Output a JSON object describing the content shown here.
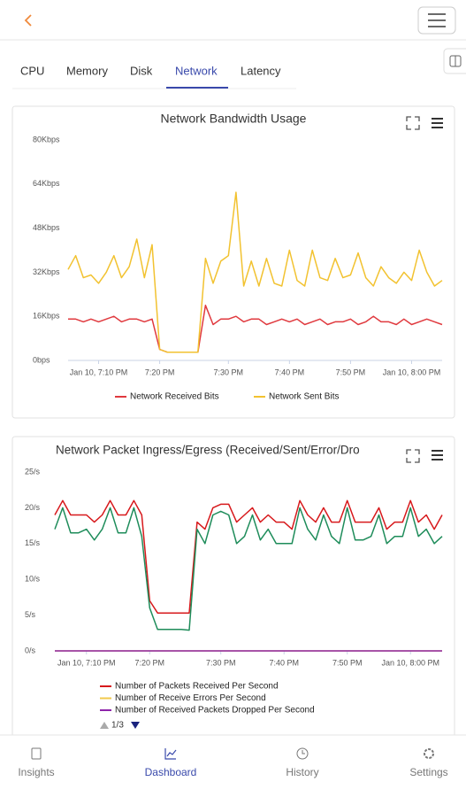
{
  "tabs": [
    "CPU",
    "Memory",
    "Disk",
    "Network",
    "Latency"
  ],
  "legend_page": "1/3",
  "nav": [
    "Insights",
    "Dashboard",
    "History",
    "Settings"
  ],
  "chart_data": [
    {
      "type": "line",
      "title": "Network Bandwidth Usage",
      "categories": [
        null,
        null,
        null,
        null,
        "Jan 10, 7:10 PM",
        null,
        null,
        null,
        null,
        null,
        null,
        null,
        "7:20 PM",
        null,
        null,
        null,
        null,
        null,
        null,
        null,
        null,
        "7:30 PM",
        null,
        null,
        null,
        null,
        null,
        null,
        null,
        "7:40 PM",
        null,
        null,
        null,
        null,
        null,
        null,
        null,
        "7:50 PM",
        null,
        null,
        null,
        null,
        null,
        null,
        null,
        "Jan 10, 8:00 PM",
        null,
        null,
        null,
        null
      ],
      "series": [
        {
          "name": "Network Received Bits",
          "color": "#e0393e",
          "values": [
            15,
            15,
            14,
            15,
            14,
            15,
            16,
            14,
            15,
            15,
            14,
            15,
            4,
            3,
            3,
            3,
            3,
            3,
            20,
            13,
            15,
            15,
            16,
            14,
            15,
            15,
            13,
            14,
            15,
            14,
            15,
            13,
            14,
            15,
            13,
            14,
            14,
            15,
            13,
            14,
            16,
            14,
            14,
            13,
            15,
            13,
            14,
            15,
            14,
            13
          ]
        },
        {
          "name": "Network Sent Bits",
          "color": "#f2c230",
          "values": [
            33,
            38,
            30,
            31,
            28,
            32,
            38,
            30,
            34,
            44,
            30,
            42,
            4,
            3,
            3,
            3,
            3,
            3,
            37,
            28,
            36,
            38,
            61,
            27,
            36,
            27,
            37,
            28,
            27,
            40,
            29,
            27,
            40,
            30,
            29,
            37,
            30,
            31,
            39,
            30,
            27,
            34,
            30,
            28,
            32,
            29,
            40,
            32,
            27,
            29
          ]
        }
      ],
      "ylim": [
        0,
        80
      ],
      "yticks": [
        {
          "value": 0,
          "label": "0bps"
        },
        {
          "value": 16,
          "label": "16Kbps"
        },
        {
          "value": 32,
          "label": "32Kbps"
        },
        {
          "value": 48,
          "label": "48Kbps"
        },
        {
          "value": 64,
          "label": "64Kbps"
        },
        {
          "value": 80,
          "label": "80Kbps"
        }
      ],
      "grid": false,
      "legend": "bottom"
    },
    {
      "type": "line",
      "title": "Network Packet Ingress/Egress (Received/Sent/Error/Dro",
      "categories": [
        null,
        null,
        null,
        null,
        "Jan 10, 7:10 PM",
        null,
        null,
        null,
        null,
        null,
        null,
        null,
        "7:20 PM",
        null,
        null,
        null,
        null,
        null,
        null,
        null,
        null,
        "7:30 PM",
        null,
        null,
        null,
        null,
        null,
        null,
        null,
        "7:40 PM",
        null,
        null,
        null,
        null,
        null,
        null,
        null,
        "7:50 PM",
        null,
        null,
        null,
        null,
        null,
        null,
        null,
        "Jan 10, 8:00 PM",
        null,
        null,
        null,
        null
      ],
      "series": [
        {
          "name": "Number of Packets Received Per Second",
          "color": "#d7191c",
          "values": [
            19,
            21,
            19,
            19,
            19,
            18,
            19,
            21,
            19,
            19,
            21,
            19,
            7,
            5.3,
            5.3,
            5.3,
            5.3,
            5.3,
            18,
            17,
            20,
            20.5,
            20.5,
            18,
            19,
            20,
            18,
            19,
            18,
            18,
            17,
            21,
            19,
            18,
            20,
            18,
            18,
            21,
            18,
            18,
            18,
            20,
            17,
            18,
            18,
            21,
            18,
            19,
            17,
            19
          ]
        },
        {
          "name": "Number of Receive Errors Per Second",
          "color": "#f2c94c",
          "values": [
            0,
            0,
            0,
            0,
            0,
            0,
            0,
            0,
            0,
            0,
            0,
            0,
            0,
            0,
            0,
            0,
            0,
            0,
            0,
            0,
            0,
            0,
            0,
            0,
            0,
            0,
            0,
            0,
            0,
            0,
            0,
            0,
            0,
            0,
            0,
            0,
            0,
            0,
            0,
            0,
            0,
            0,
            0,
            0,
            0,
            0,
            0,
            0,
            0,
            0
          ]
        },
        {
          "name": "Number of Received Packets Dropped Per Second",
          "color": "#8e24aa",
          "values": [
            0,
            0,
            0,
            0,
            0,
            0,
            0,
            0,
            0,
            0,
            0,
            0,
            0,
            0,
            0,
            0,
            0,
            0,
            0,
            0,
            0,
            0,
            0,
            0,
            0,
            0,
            0,
            0,
            0,
            0,
            0,
            0,
            0,
            0,
            0,
            0,
            0,
            0,
            0,
            0,
            0,
            0,
            0,
            0,
            0,
            0,
            0,
            0,
            0,
            0
          ]
        },
        {
          "color": "#1e8c5a",
          "values": [
            17,
            20,
            16.5,
            16.5,
            17,
            15.5,
            17,
            20,
            16.5,
            16.5,
            20,
            16,
            6,
            3,
            3,
            3,
            3,
            2.9,
            17,
            15,
            19,
            19.5,
            19,
            15,
            16,
            19,
            15.5,
            17,
            15,
            15,
            15,
            20,
            17,
            15.5,
            19,
            16,
            15,
            20,
            15.5,
            15.5,
            16,
            19,
            15,
            16,
            16,
            20,
            16,
            17,
            15,
            16
          ]
        }
      ],
      "ylim": [
        0,
        25
      ],
      "yticks": [
        {
          "value": 0,
          "label": "0/s"
        },
        {
          "value": 5,
          "label": "5/s"
        },
        {
          "value": 10,
          "label": "10/s"
        },
        {
          "value": 15,
          "label": "15/s"
        },
        {
          "value": 20,
          "label": "20/s"
        },
        {
          "value": 25,
          "label": "25/s"
        }
      ],
      "grid": false,
      "legend": "bottom"
    }
  ]
}
